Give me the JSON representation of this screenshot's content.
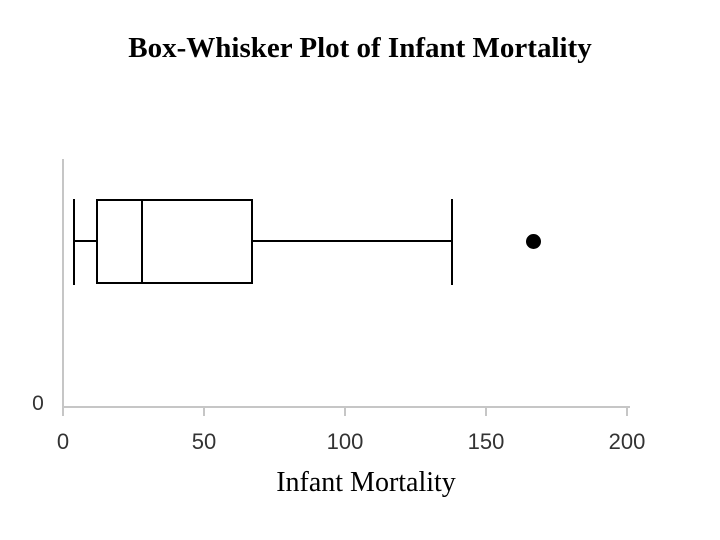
{
  "colors": {
    "line": "#000000",
    "axis": "#c6c6c6",
    "tick_label": "#333333",
    "title": "#000000"
  },
  "chart_data": {
    "type": "box",
    "orientation": "horizontal",
    "title": "Box-Whisker Plot of Infant Mortality",
    "xlabel": "Infant Mortality",
    "ylabel": "",
    "xlim": [
      0,
      200
    ],
    "x_tick_values": [
      0,
      50,
      100,
      150,
      200
    ],
    "x_tick_labels": [
      "0",
      "50",
      "100",
      "150",
      "200"
    ],
    "y_tick_labels": [
      "0"
    ],
    "grid": false,
    "legend": false,
    "series": [
      {
        "name": "Infant Mortality",
        "min": 4,
        "q1": 12,
        "median": 28,
        "q3": 67,
        "max": 138,
        "outliers": [
          167
        ]
      }
    ]
  }
}
